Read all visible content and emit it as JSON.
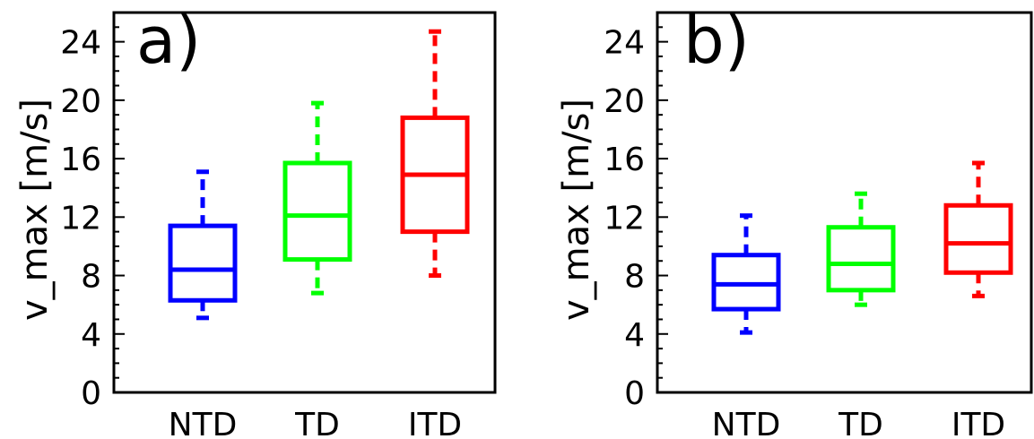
{
  "chart_data": [
    {
      "type": "box",
      "panel_label": "a)",
      "ylabel": "v_max [m/s]",
      "ylim": [
        0,
        26
      ],
      "yticks": [
        0,
        4,
        8,
        12,
        16,
        20,
        24
      ],
      "categories": [
        "NTD",
        "TD",
        "ITD"
      ],
      "colors": [
        "#0000ff",
        "#00ff00",
        "#ff0000"
      ],
      "boxes": [
        {
          "name": "NTD",
          "whisker_low": 5.1,
          "q1": 6.3,
          "median": 8.4,
          "q3": 11.4,
          "whisker_high": 15.1
        },
        {
          "name": "TD",
          "whisker_low": 6.8,
          "q1": 9.1,
          "median": 12.1,
          "q3": 15.7,
          "whisker_high": 19.8
        },
        {
          "name": "ITD",
          "whisker_low": 8.0,
          "q1": 11.0,
          "median": 14.9,
          "q3": 18.8,
          "whisker_high": 24.7
        }
      ]
    },
    {
      "type": "box",
      "panel_label": "b)",
      "ylabel": "v_max [m/s]",
      "ylim": [
        0,
        26
      ],
      "yticks": [
        0,
        4,
        8,
        12,
        16,
        20,
        24
      ],
      "categories": [
        "NTD",
        "TD",
        "ITD"
      ],
      "colors": [
        "#0000ff",
        "#00ff00",
        "#ff0000"
      ],
      "boxes": [
        {
          "name": "NTD",
          "whisker_low": 4.1,
          "q1": 5.7,
          "median": 7.4,
          "q3": 9.4,
          "whisker_high": 12.1
        },
        {
          "name": "TD",
          "whisker_low": 6.0,
          "q1": 7.0,
          "median": 8.8,
          "q3": 11.3,
          "whisker_high": 13.6
        },
        {
          "name": "ITD",
          "whisker_low": 6.6,
          "q1": 8.2,
          "median": 10.2,
          "q3": 12.8,
          "whisker_high": 15.7
        }
      ]
    }
  ]
}
